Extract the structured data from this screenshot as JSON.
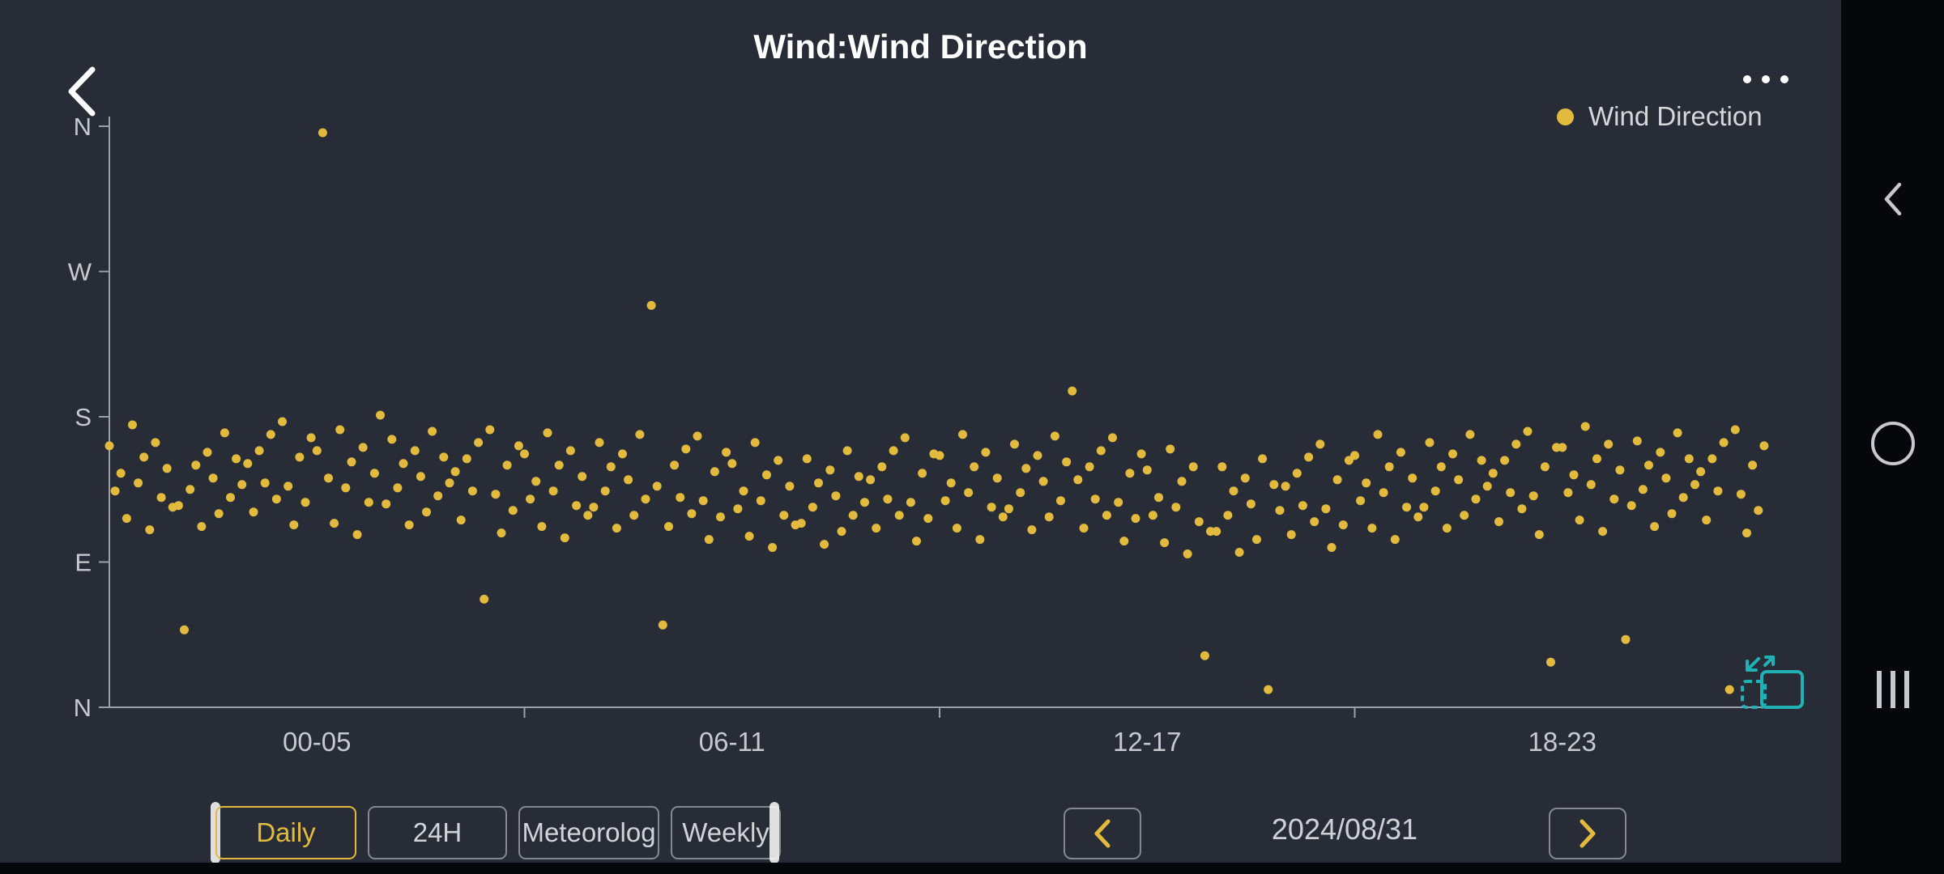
{
  "header": {
    "title": "Wind:Wind Direction"
  },
  "legend": {
    "label": "Wind Direction",
    "dot_color": "#e2ba3d"
  },
  "chart_data": {
    "type": "scatter",
    "title": "Wind:Wind Direction",
    "series": [
      {
        "name": "Wind Direction",
        "color": "#e2ba3d"
      }
    ],
    "x_axis": {
      "tick_labels": [
        "00-05",
        "06-11",
        "12-17",
        "18-23"
      ],
      "tick_center_hours": [
        3,
        9,
        15,
        21
      ],
      "boundary_hours": [
        6,
        12,
        18
      ],
      "range_hours": [
        0,
        24
      ]
    },
    "y_axis": {
      "tick_labels": [
        "N",
        "W",
        "S",
        "E",
        "N"
      ],
      "tick_values_deg": [
        360,
        270,
        180,
        90,
        0
      ],
      "range_deg": [
        0,
        360
      ]
    },
    "x_interval_minutes": 5,
    "values_deg": [
      162,
      134,
      145,
      117,
      175,
      139,
      155,
      110,
      164,
      130,
      148,
      124,
      125,
      48,
      135,
      150,
      112,
      158,
      142,
      120,
      170,
      130,
      154,
      138,
      151,
      121,
      159,
      139,
      169,
      129,
      177,
      137,
      113,
      155,
      127,
      167,
      159,
      356,
      142,
      114,
      172,
      136,
      152,
      107,
      161,
      127,
      145,
      181,
      126,
      166,
      136,
      151,
      113,
      159,
      143,
      121,
      171,
      131,
      155,
      139,
      146,
      116,
      154,
      134,
      164,
      67,
      172,
      132,
      108,
      150,
      122,
      162,
      157,
      129,
      140,
      112,
      170,
      134,
      150,
      105,
      159,
      125,
      143,
      119,
      124,
      164,
      134,
      149,
      111,
      157,
      141,
      119,
      169,
      129,
      249,
      137,
      51,
      112,
      150,
      130,
      160,
      120,
      168,
      128,
      104,
      146,
      118,
      158,
      151,
      123,
      134,
      106,
      164,
      128,
      144,
      99,
      153,
      119,
      137,
      113,
      114,
      154,
      124,
      139,
      101,
      147,
      131,
      109,
      159,
      119,
      143,
      127,
      141,
      111,
      149,
      129,
      159,
      119,
      167,
      127,
      103,
      145,
      117,
      157,
      156,
      128,
      139,
      111,
      169,
      133,
      149,
      104,
      158,
      124,
      142,
      118,
      123,
      163,
      133,
      148,
      110,
      156,
      140,
      118,
      168,
      128,
      152,
      196,
      141,
      111,
      149,
      129,
      159,
      119,
      167,
      127,
      103,
      145,
      117,
      157,
      147,
      119,
      130,
      102,
      160,
      124,
      140,
      95,
      149,
      115,
      32,
      109,
      109,
      149,
      119,
      134,
      96,
      142,
      126,
      104,
      154,
      11,
      138,
      122,
      137,
      107,
      145,
      125,
      155,
      115,
      163,
      123,
      99,
      141,
      113,
      153,
      156,
      128,
      139,
      111,
      169,
      133,
      149,
      104,
      158,
      124,
      142,
      118,
      124,
      164,
      134,
      149,
      111,
      157,
      141,
      119,
      169,
      129,
      153,
      137,
      145,
      115,
      153,
      133,
      163,
      123,
      171,
      131,
      107,
      149,
      28,
      161,
      161,
      133,
      144,
      116,
      174,
      138,
      154,
      109,
      163,
      129,
      147,
      42,
      125,
      165,
      135,
      150,
      112,
      158,
      142,
      120,
      170,
      130,
      154,
      138,
      146,
      116,
      154,
      134,
      164,
      11,
      172,
      132,
      108,
      150,
      122,
      162
    ]
  },
  "toolbar": {
    "buttons": [
      {
        "label": "Daily",
        "active": true
      },
      {
        "label": "24H",
        "active": false
      },
      {
        "label": "Meteorolog",
        "active": false
      },
      {
        "label": "Weekly",
        "active": false
      }
    ],
    "date": "2024/08/31"
  },
  "android_nav": {
    "items": [
      "back",
      "home",
      "recents"
    ]
  },
  "colors": {
    "background": "#282c36",
    "accent_yellow": "#e2ba3d",
    "point": "#e2ba3d",
    "axis": "#9ba0a8",
    "tick_text": "#c6c9ce",
    "text_light": "#d5d7db",
    "teal": "#1fb1b5",
    "nav_bg": "#06070a"
  }
}
